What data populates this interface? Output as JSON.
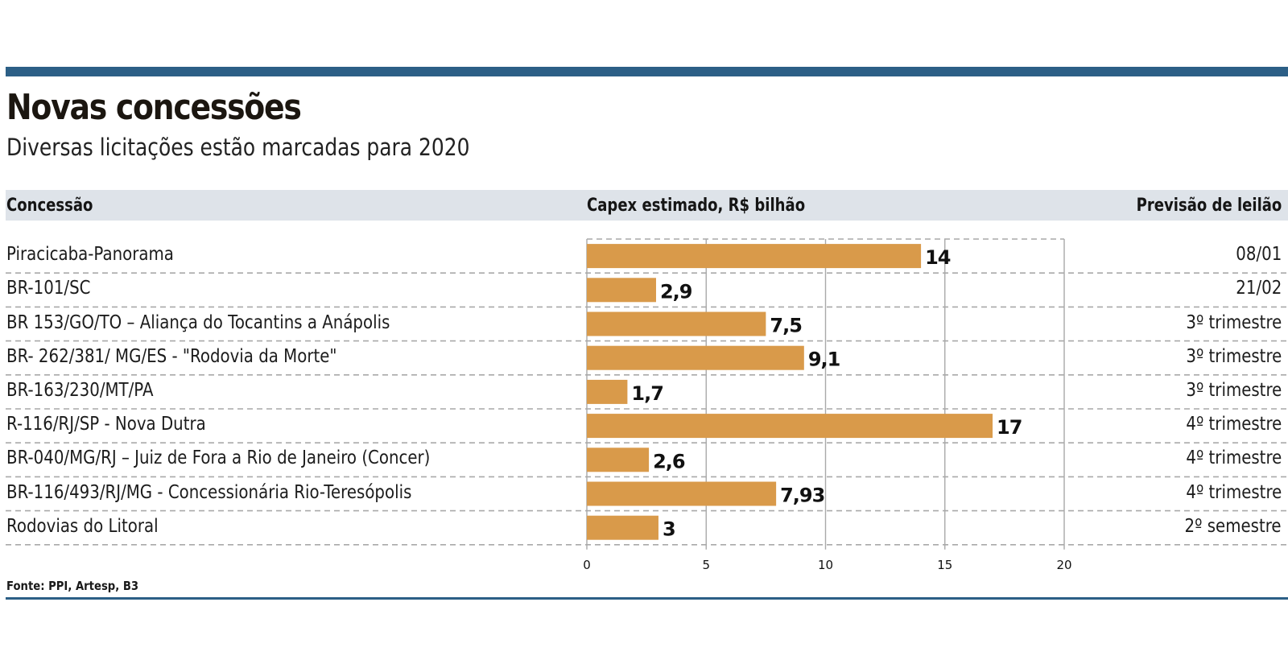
{
  "header": {
    "title": "Novas concessões",
    "subtitle": "Diversas licitações estão marcadas para 2020"
  },
  "columns": {
    "concession": "Concessão",
    "capex": "Capex estimado, R$ bilhão",
    "auction": "Previsão de leilão"
  },
  "rows": [
    {
      "label": "Piracicaba-Panorama",
      "value_label": "14",
      "date": "08/01"
    },
    {
      "label": "BR-101/SC",
      "value_label": "2,9",
      "date": "21/02"
    },
    {
      "label": "BR 153/GO/TO – Aliança do Tocantins a Anápolis",
      "value_label": "7,5",
      "date": "3º trimestre"
    },
    {
      "label": "BR- 262/381/ MG/ES - \"Rodovia da Morte\"",
      "value_label": "9,1",
      "date": "3º trimestre"
    },
    {
      "label": "BR-163/230/MT/PA",
      "value_label": "1,7",
      "date": "3º trimestre"
    },
    {
      "label": "R-116/RJ/SP - Nova Dutra",
      "value_label": "17",
      "date": "4º trimestre"
    },
    {
      "label": "BR-040/MG/RJ – Juiz de Fora a Rio de Janeiro (Concer)",
      "value_label": "2,6",
      "date": "4º trimestre"
    },
    {
      "label": "BR-116/493/RJ/MG - Concessionária Rio-Teresópolis",
      "value_label": "7,93",
      "date": "4º trimestre"
    },
    {
      "label": "Rodovias do Litoral",
      "value_label": "3",
      "date": "2º semestre"
    }
  ],
  "source": "Fonte: PPI, Artesp, B3",
  "colors": {
    "bar": "#D99A4A",
    "accent_rule": "#2C5F86",
    "header_band": "#DEE3E9",
    "grid": "#A9A9A9"
  },
  "chart_data": {
    "type": "bar",
    "orientation": "horizontal",
    "title": "Novas concessões",
    "subtitle": "Diversas licitações estão marcadas para 2020",
    "xlabel": "Capex estimado, R$ bilhão",
    "ylabel": "Concessão",
    "categories": [
      "Piracicaba-Panorama",
      "BR-101/SC",
      "BR 153/GO/TO – Aliança do Tocantins a Anápolis",
      "BR- 262/381/ MG/ES - \"Rodovia da Morte\"",
      "BR-163/230/MT/PA",
      "R-116/RJ/SP - Nova Dutra",
      "BR-040/MG/RJ – Juiz de Fora a Rio de Janeiro (Concer)",
      "BR-116/493/RJ/MG - Concessionária Rio-Teresópolis",
      "Rodovias do Litoral"
    ],
    "values": [
      14,
      2.9,
      7.5,
      9.1,
      1.7,
      17,
      2.6,
      7.93,
      3
    ],
    "xlim": [
      0,
      20
    ],
    "xticks": [
      0,
      5,
      10,
      15,
      20
    ],
    "xtick_labels": [
      "0",
      "5",
      "10",
      "15",
      "20"
    ],
    "grid": true,
    "legend": "none"
  }
}
